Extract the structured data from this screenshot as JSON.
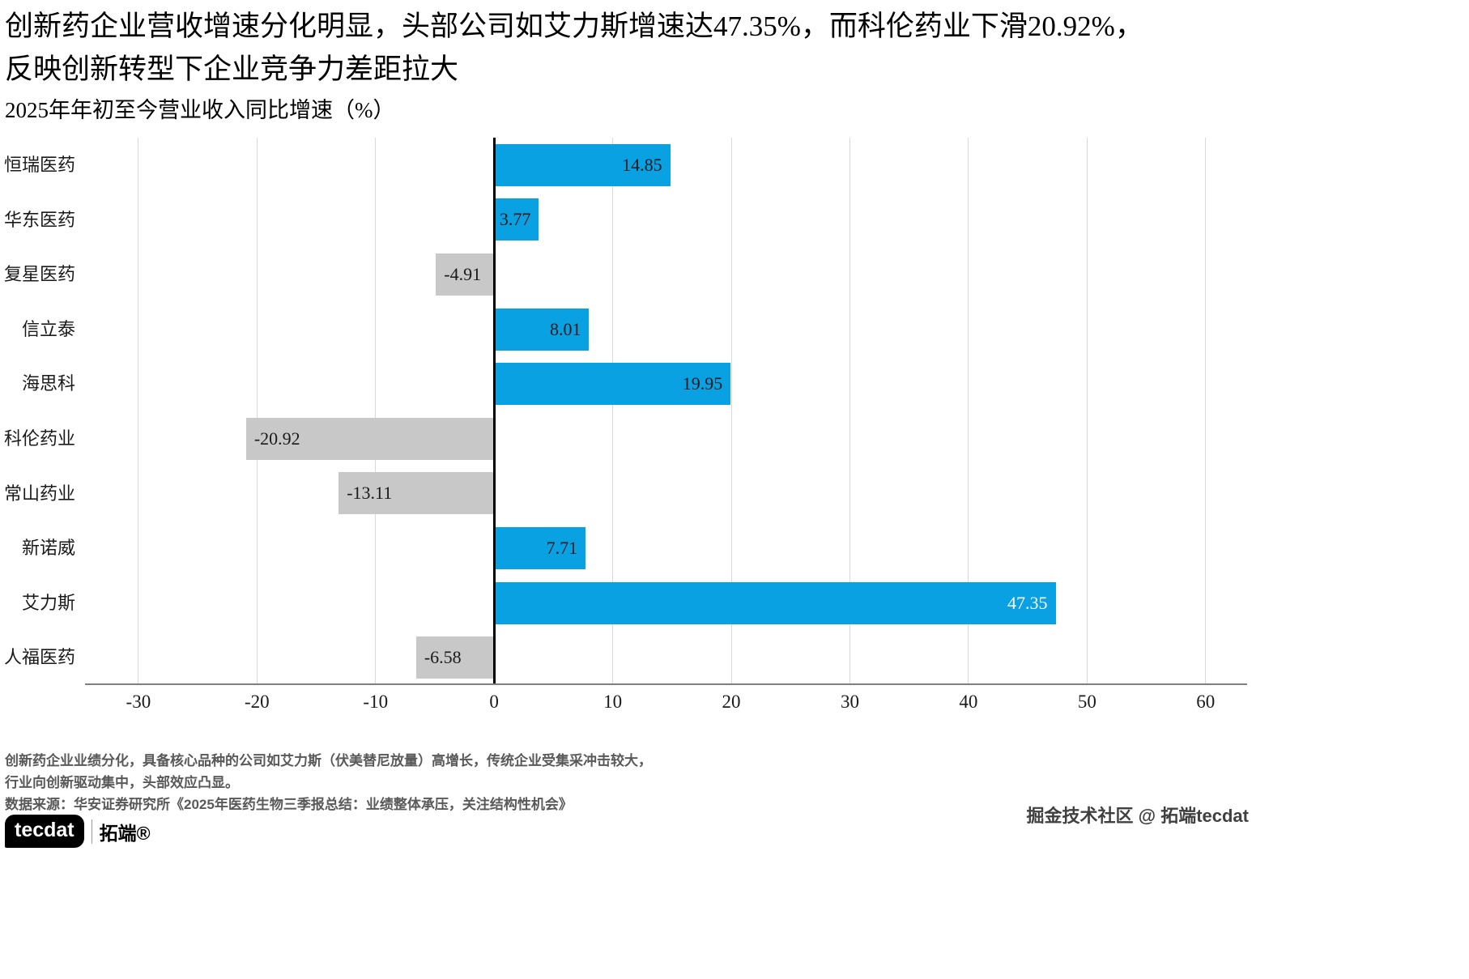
{
  "title": {
    "line1": "创新药企业营收增速分化明显，头部公司如艾力斯增速达47.35%，而科伦药业下滑20.92%，",
    "line2": "反映创新转型下企业竞争力差距拉大"
  },
  "subtitle": "2025年年初至今营业收入同比增速（%）",
  "chart_data": {
    "type": "bar",
    "orientation": "horizontal",
    "title": "2025年年初至今营业收入同比增速（%）",
    "categories": [
      "恒瑞医药",
      "华东医药",
      "复星医药",
      "信立泰",
      "海思科",
      "科伦药业",
      "常山药业",
      "新诺威",
      "艾力斯",
      "人福医药"
    ],
    "values": [
      14.85,
      3.77,
      -4.91,
      8.01,
      19.95,
      -20.92,
      -13.11,
      7.71,
      47.35,
      -6.58
    ],
    "value_labels": [
      "14.85",
      "3.77",
      "-4.91",
      "8.01",
      "19.95",
      "-20.92",
      "-13.11",
      "7.71",
      "47.35",
      "-6.58"
    ],
    "value_label_colors": [
      "#1a1a1a",
      "#1a1a1a",
      "#1a1a1a",
      "#1a1a1a",
      "#1a1a1a",
      "#1a1a1a",
      "#1a1a1a",
      "#1a1a1a",
      "#ffffff",
      "#1a1a1a"
    ],
    "xticks": [
      -30,
      -20,
      -10,
      0,
      10,
      20,
      30,
      40,
      50,
      60
    ],
    "xlim": [
      -34.5,
      63.5
    ],
    "grid": true,
    "legend": false,
    "bar_colors": {
      "positive": "#0aa1e3",
      "negative": "#c8c8c8"
    },
    "gridline_color": "#d9d9d9",
    "zero_line_color": "#000000",
    "axis_color": "#7f7f7f"
  },
  "footer": {
    "note1": "创新药企业业绩分化，具备核心品种的公司如艾力斯（伏美替尼放量）高增长，传统企业受集采冲击较大，",
    "note2": "行业向创新驱动集中，头部效应凸显。",
    "source": "数据来源：华安证券研究所《2025年医药生物三季报总结：业绩整体承压，关注结构性机会》"
  },
  "branding": {
    "logo_text": "tecdat",
    "logo_suffix": "拓端®",
    "watermark": "掘金技术社区 @ 拓端tecdat"
  }
}
